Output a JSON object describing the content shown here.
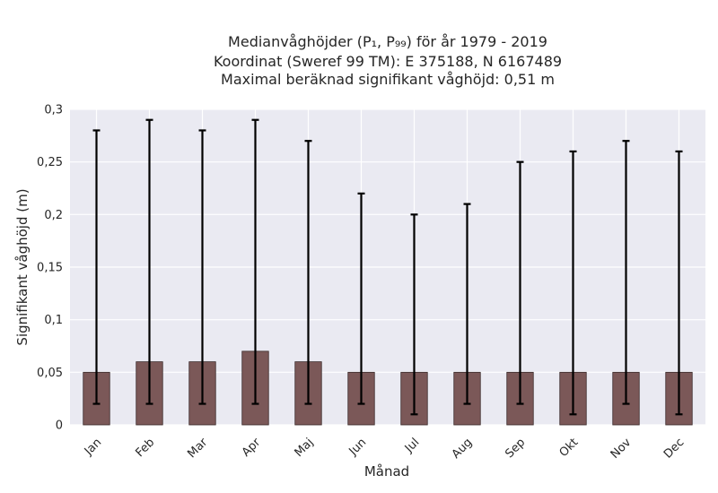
{
  "chart_data": {
    "type": "bar",
    "title_lines": [
      "Medianvåghöjder (P₁, P₉₉) för år 1979 - 2019",
      "Koordinat (Sweref 99 TM): E 375188, N 6167489",
      "Maximal beräknad signifikant våghöjd: 0,51 m"
    ],
    "xlabel": "Månad",
    "ylabel": "Signifikant våghöjd (m)",
    "categories": [
      "Jan",
      "Feb",
      "Mar",
      "Apr",
      "Maj",
      "Jun",
      "Jul",
      "Aug",
      "Sep",
      "Okt",
      "Nov",
      "Dec"
    ],
    "median": [
      0.05,
      0.06,
      0.06,
      0.07,
      0.06,
      0.05,
      0.05,
      0.05,
      0.05,
      0.05,
      0.05,
      0.05
    ],
    "p1": [
      0.02,
      0.02,
      0.02,
      0.02,
      0.02,
      0.02,
      0.01,
      0.02,
      0.02,
      0.01,
      0.02,
      0.01
    ],
    "p99": [
      0.28,
      0.29,
      0.28,
      0.29,
      0.27,
      0.22,
      0.2,
      0.21,
      0.25,
      0.26,
      0.27,
      0.26
    ],
    "ylim": [
      0,
      0.3
    ],
    "yticks": [
      {
        "value": 0,
        "label": "0"
      },
      {
        "value": 0.05,
        "label": "0,05"
      },
      {
        "value": 0.1,
        "label": "0,1"
      },
      {
        "value": 0.15,
        "label": "0,15"
      },
      {
        "value": 0.2,
        "label": "0,2"
      },
      {
        "value": 0.25,
        "label": "0,25"
      },
      {
        "value": 0.3,
        "label": "0,3"
      }
    ],
    "grid": true,
    "colors": {
      "bar_fill": "#7b5858",
      "bar_edge": "#3a2a2a",
      "error_bar": "#000000",
      "plot_bg": "#eaeaf2",
      "grid": "#ffffff"
    }
  }
}
